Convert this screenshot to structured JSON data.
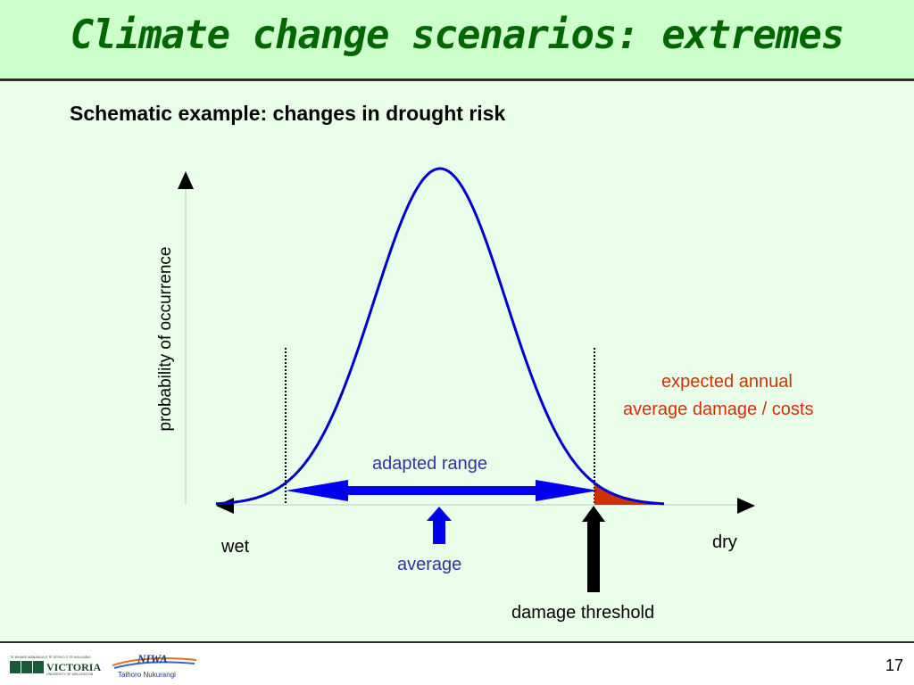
{
  "slide": {
    "title": "Climate change scenarios: extremes",
    "subtitle": "Schematic example: changes in drought risk",
    "page_number": "17"
  },
  "diagram": {
    "y_axis_label": "probability of occurrence",
    "left_label": "wet",
    "right_label": "dry",
    "range_label": "adapted range",
    "average_label": "average",
    "threshold_label": "damage threshold",
    "damage_label_line1": "expected annual",
    "damage_label_line2": "average damage / costs",
    "colors": {
      "curve": "#0000cc",
      "range_arrow": "#0000ee",
      "damage_fill": "#cc3300",
      "damage_text": "#cc3300",
      "range_text": "#333399",
      "average_text": "#333399",
      "title": "#006600",
      "background": "#eaffea"
    }
  },
  "footer": {
    "logo_victoria_text": "VICTORIA",
    "logo_victoria_tagline": "TE WHARE WĀNANGA O TE ŪPOKO O TE IKA A MĀUI",
    "logo_victoria_sub": "UNIVERSITY OF WELLINGTON",
    "logo_niwa_text": "NIWA",
    "logo_niwa_sub": "Taihoro Nukurangi"
  }
}
